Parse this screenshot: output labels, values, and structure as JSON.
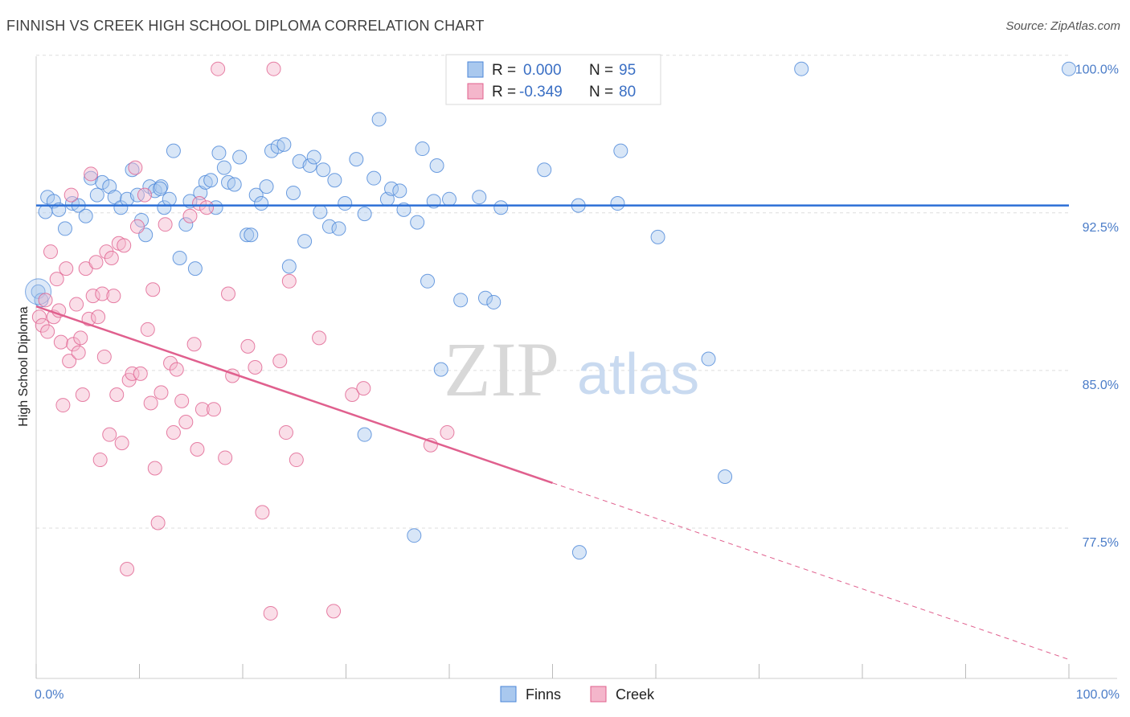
{
  "title": "FINNISH VS CREEK HIGH SCHOOL DIPLOMA CORRELATION CHART",
  "source": "Source: ZipAtlas.com",
  "watermark": {
    "zip": "ZIP",
    "atlas": "atlas"
  },
  "colors": {
    "finns": "#4a86d8",
    "finns_fill": "#a9c8ee",
    "creek": "#e0608e",
    "creek_fill": "#f4b6cb",
    "tick": "#4a7cc8",
    "grid": "#dddddd"
  },
  "chart_data": {
    "type": "scatter",
    "title": "FINNISH VS CREEK HIGH SCHOOL DIPLOMA CORRELATION CHART",
    "xlabel": "",
    "ylabel": "High School Diploma",
    "xlim": [
      0,
      100
    ],
    "ylim": [
      71,
      100.6
    ],
    "x_tick_labels": [
      "0.0%",
      "100.0%"
    ],
    "y_ticks": [
      100.0,
      92.5,
      85.0,
      77.5
    ],
    "y_tick_labels": [
      "100.0%",
      "92.5%",
      "85.0%",
      "77.5%"
    ],
    "grid": true,
    "legend": {
      "placement": "top-center",
      "rows": [
        {
          "r_label": "R =",
          "r_value": "0.000",
          "n_label": "N =",
          "n_value": "95"
        },
        {
          "r_label": "R =",
          "r_value": "-0.349",
          "n_label": "N =",
          "n_value": "80"
        }
      ]
    },
    "series": [
      {
        "name": "Finns",
        "trend": {
          "x": [
            0,
            100
          ],
          "y": [
            93.5,
            93.5
          ],
          "dashed_after": null
        },
        "points": [
          [
            1.1,
            93.9
          ],
          [
            0.9,
            93.2
          ],
          [
            1.7,
            93.7
          ],
          [
            2.2,
            93.3
          ],
          [
            2.8,
            92.4
          ],
          [
            3.5,
            93.6
          ],
          [
            4.1,
            93.5
          ],
          [
            4.8,
            93.0
          ],
          [
            5.3,
            94.8
          ],
          [
            5.9,
            94.0
          ],
          [
            6.4,
            94.6
          ],
          [
            7.1,
            94.4
          ],
          [
            7.6,
            93.9
          ],
          [
            8.2,
            93.4
          ],
          [
            8.8,
            93.8
          ],
          [
            9.3,
            95.2
          ],
          [
            9.8,
            94.0
          ],
          [
            10.2,
            92.8
          ],
          [
            10.6,
            92.1
          ],
          [
            11.0,
            94.4
          ],
          [
            11.5,
            94.2
          ],
          [
            12.1,
            94.4
          ],
          [
            12.4,
            93.4
          ],
          [
            12.9,
            93.8
          ],
          [
            13.3,
            96.1
          ],
          [
            13.9,
            91.0
          ],
          [
            14.5,
            92.6
          ],
          [
            14.9,
            93.7
          ],
          [
            15.4,
            90.5
          ],
          [
            15.9,
            94.1
          ],
          [
            16.4,
            94.6
          ],
          [
            16.9,
            94.7
          ],
          [
            17.4,
            93.4
          ],
          [
            17.7,
            96.0
          ],
          [
            18.2,
            95.3
          ],
          [
            18.6,
            94.6
          ],
          [
            19.2,
            94.5
          ],
          [
            19.7,
            95.8
          ],
          [
            20.4,
            92.1
          ],
          [
            20.8,
            92.1
          ],
          [
            21.3,
            94.0
          ],
          [
            21.8,
            93.6
          ],
          [
            22.3,
            94.4
          ],
          [
            22.8,
            96.1
          ],
          [
            23.4,
            96.3
          ],
          [
            24.0,
            96.4
          ],
          [
            24.5,
            90.6
          ],
          [
            24.9,
            94.1
          ],
          [
            25.5,
            95.6
          ],
          [
            26.0,
            91.8
          ],
          [
            26.5,
            95.4
          ],
          [
            26.9,
            95.8
          ],
          [
            27.5,
            93.2
          ],
          [
            27.8,
            95.2
          ],
          [
            28.4,
            92.5
          ],
          [
            28.9,
            94.7
          ],
          [
            29.3,
            92.4
          ],
          [
            29.9,
            93.6
          ],
          [
            31.0,
            95.7
          ],
          [
            31.8,
            93.1
          ],
          [
            32.7,
            94.8
          ],
          [
            33.2,
            97.6
          ],
          [
            34.0,
            93.8
          ],
          [
            34.4,
            94.3
          ],
          [
            35.2,
            94.2
          ],
          [
            35.6,
            93.3
          ],
          [
            36.9,
            92.7
          ],
          [
            37.4,
            96.2
          ],
          [
            37.9,
            89.9
          ],
          [
            38.5,
            93.7
          ],
          [
            38.8,
            95.4
          ],
          [
            39.2,
            85.7
          ],
          [
            40.0,
            93.8
          ],
          [
            41.1,
            89.0
          ],
          [
            42.9,
            93.9
          ],
          [
            43.5,
            89.1
          ],
          [
            44.3,
            88.9
          ],
          [
            45.0,
            93.4
          ],
          [
            49.2,
            95.2
          ],
          [
            52.5,
            93.5
          ],
          [
            56.3,
            93.6
          ],
          [
            56.6,
            96.1
          ],
          [
            60.2,
            92.0
          ],
          [
            65.1,
            86.2
          ],
          [
            66.7,
            80.6
          ],
          [
            74.1,
            100.0
          ],
          [
            56.0,
            100.0
          ],
          [
            58.3,
            100.0
          ],
          [
            100.0,
            100.0
          ],
          [
            0.2,
            89.4
          ],
          [
            0.5,
            89.0
          ],
          [
            36.6,
            77.8
          ],
          [
            31.8,
            82.6
          ],
          [
            52.6,
            77.0
          ],
          [
            12.0,
            94.3
          ]
        ]
      },
      {
        "name": "Creek",
        "trend": {
          "x": [
            0,
            100
          ],
          "y": [
            88.7,
            71.9
          ],
          "solid_until_x": 50
        },
        "points": [
          [
            0.3,
            88.2
          ],
          [
            0.6,
            87.8
          ],
          [
            0.9,
            89.0
          ],
          [
            1.1,
            87.5
          ],
          [
            1.4,
            91.3
          ],
          [
            1.7,
            88.2
          ],
          [
            2.0,
            90.0
          ],
          [
            2.2,
            88.5
          ],
          [
            2.4,
            87.0
          ],
          [
            2.6,
            84.0
          ],
          [
            2.9,
            90.5
          ],
          [
            3.2,
            86.1
          ],
          [
            3.4,
            94.0
          ],
          [
            3.6,
            86.9
          ],
          [
            3.9,
            88.8
          ],
          [
            4.1,
            86.5
          ],
          [
            4.3,
            87.2
          ],
          [
            4.5,
            84.5
          ],
          [
            4.8,
            90.5
          ],
          [
            5.1,
            88.1
          ],
          [
            5.3,
            95.0
          ],
          [
            5.5,
            89.2
          ],
          [
            5.8,
            90.8
          ],
          [
            6.0,
            88.2
          ],
          [
            6.2,
            81.4
          ],
          [
            6.4,
            89.3
          ],
          [
            6.6,
            86.3
          ],
          [
            6.8,
            91.3
          ],
          [
            7.1,
            82.6
          ],
          [
            7.3,
            91.0
          ],
          [
            7.5,
            89.2
          ],
          [
            7.8,
            84.5
          ],
          [
            8.0,
            91.7
          ],
          [
            8.3,
            82.2
          ],
          [
            8.5,
            91.6
          ],
          [
            8.8,
            76.2
          ],
          [
            9.0,
            85.2
          ],
          [
            9.3,
            85.5
          ],
          [
            9.6,
            95.3
          ],
          [
            9.8,
            92.5
          ],
          [
            10.1,
            85.5
          ],
          [
            10.5,
            94.0
          ],
          [
            10.8,
            87.6
          ],
          [
            11.1,
            84.1
          ],
          [
            11.3,
            89.5
          ],
          [
            11.5,
            81.0
          ],
          [
            11.8,
            78.4
          ],
          [
            12.1,
            84.6
          ],
          [
            12.5,
            92.6
          ],
          [
            13.0,
            86.0
          ],
          [
            13.3,
            82.7
          ],
          [
            13.6,
            85.7
          ],
          [
            14.1,
            84.2
          ],
          [
            14.5,
            83.2
          ],
          [
            14.9,
            93.0
          ],
          [
            15.3,
            86.9
          ],
          [
            15.6,
            81.9
          ],
          [
            15.8,
            93.6
          ],
          [
            16.1,
            83.8
          ],
          [
            16.5,
            93.4
          ],
          [
            17.2,
            83.8
          ],
          [
            18.3,
            81.5
          ],
          [
            18.6,
            89.3
          ],
          [
            19.0,
            85.4
          ],
          [
            20.5,
            86.8
          ],
          [
            21.2,
            85.8
          ],
          [
            21.9,
            78.9
          ],
          [
            22.7,
            74.1
          ],
          [
            23.0,
            100.0
          ],
          [
            17.6,
            100.0
          ],
          [
            23.6,
            86.1
          ],
          [
            24.2,
            82.7
          ],
          [
            24.5,
            89.9
          ],
          [
            25.2,
            81.4
          ],
          [
            27.4,
            87.2
          ],
          [
            28.8,
            74.2
          ],
          [
            30.6,
            84.5
          ],
          [
            31.7,
            84.8
          ],
          [
            38.2,
            82.1
          ],
          [
            39.8,
            82.7
          ]
        ]
      }
    ]
  },
  "bottom_legend": [
    {
      "label": "Finns"
    },
    {
      "label": "Creek"
    }
  ]
}
